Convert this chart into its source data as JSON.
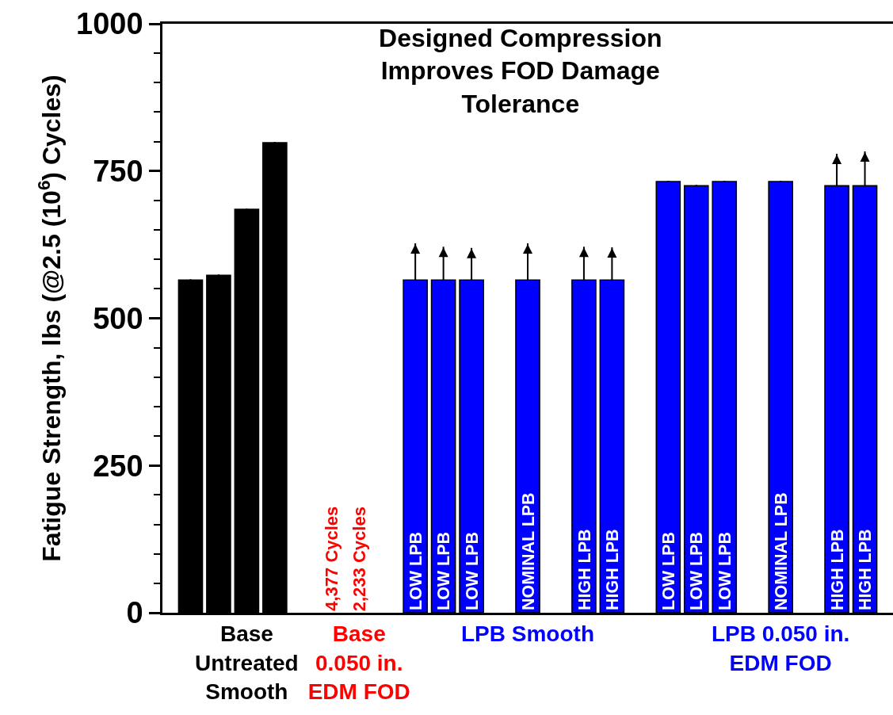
{
  "chart_data": {
    "type": "bar",
    "title": "Designed Compression\nImproves FOD Damage\nTolerance",
    "ylabel": "Fatigue Strength, lbs (@2.5 (10$^{6}$) Cycles)",
    "categories": [
      null,
      null,
      "Base\nUntreated\nSmooth",
      null,
      null,
      null,
      "Base\n0.050 in.\nEDM FOD",
      null,
      null,
      null,
      null,
      null,
      "LPB Smooth",
      null,
      null,
      null,
      null,
      null,
      null,
      null,
      null,
      "LPB 0.050 in.\nEDM FOD",
      null,
      null,
      null
    ],
    "values": [
      565,
      573,
      685,
      798,
      null,
      null,
      null,
      null,
      565,
      565,
      565,
      null,
      565,
      null,
      565,
      565,
      null,
      732,
      725,
      732,
      null,
      732,
      null,
      725,
      725
    ],
    "colors": [
      "#000000",
      "#000000",
      "#000000",
      "#000000",
      null,
      "#ff0000",
      "#ff0000",
      null,
      "#0000ff",
      "#0000ff",
      "#0000ff",
      null,
      "#0000ff",
      null,
      "#0000ff",
      "#0000ff",
      null,
      "#0000ff",
      "#0000ff",
      "#0000ff",
      null,
      "#0000ff",
      null,
      "#0000ff",
      "#0000ff"
    ],
    "value_labels": [
      null,
      null,
      null,
      null,
      null,
      "4,377 Cycles",
      "2,233 Cycles",
      null,
      "LOW LPB",
      "LOW LPB",
      "LOW LPB",
      null,
      "NOMINAL LPB",
      null,
      "HIGH LPB",
      "HIGH LPB",
      null,
      "LOW LPB",
      "LOW LPB",
      "LOW LPB",
      null,
      "NOMINAL LPB",
      null,
      "HIGH LPB",
      "HIGH LPB"
    ],
    "errors": [
      null,
      null,
      null,
      null,
      null,
      null,
      null,
      null,
      [
        565,
        626
      ],
      [
        565,
        620
      ],
      [
        565,
        618
      ],
      null,
      [
        565,
        626
      ],
      null,
      [
        565,
        620
      ],
      [
        565,
        619
      ],
      null,
      null,
      null,
      null,
      null,
      null,
      null,
      [
        725,
        778
      ],
      [
        725,
        782
      ]
    ],
    "ylim": [
      0,
      1000
    ],
    "yticks": [
      0,
      {
        "value": 50,
        "label": null
      },
      {
        "value": 100,
        "label": null
      },
      {
        "value": 150,
        "label": null
      },
      {
        "value": 200,
        "label": null
      },
      250,
      {
        "value": 300,
        "label": null
      },
      {
        "value": 350,
        "label": null
      },
      {
        "value": 400,
        "label": null
      },
      {
        "value": 450,
        "label": null
      },
      500,
      {
        "value": 550,
        "label": null
      },
      {
        "value": 600,
        "label": null
      },
      {
        "value": 650,
        "label": null
      },
      {
        "value": 700,
        "label": null
      },
      750,
      {
        "value": 800,
        "label": null
      },
      {
        "value": 850,
        "label": null
      },
      {
        "value": 900,
        "label": null
      },
      {
        "value": 950,
        "label": null
      },
      1000
    ]
  }
}
